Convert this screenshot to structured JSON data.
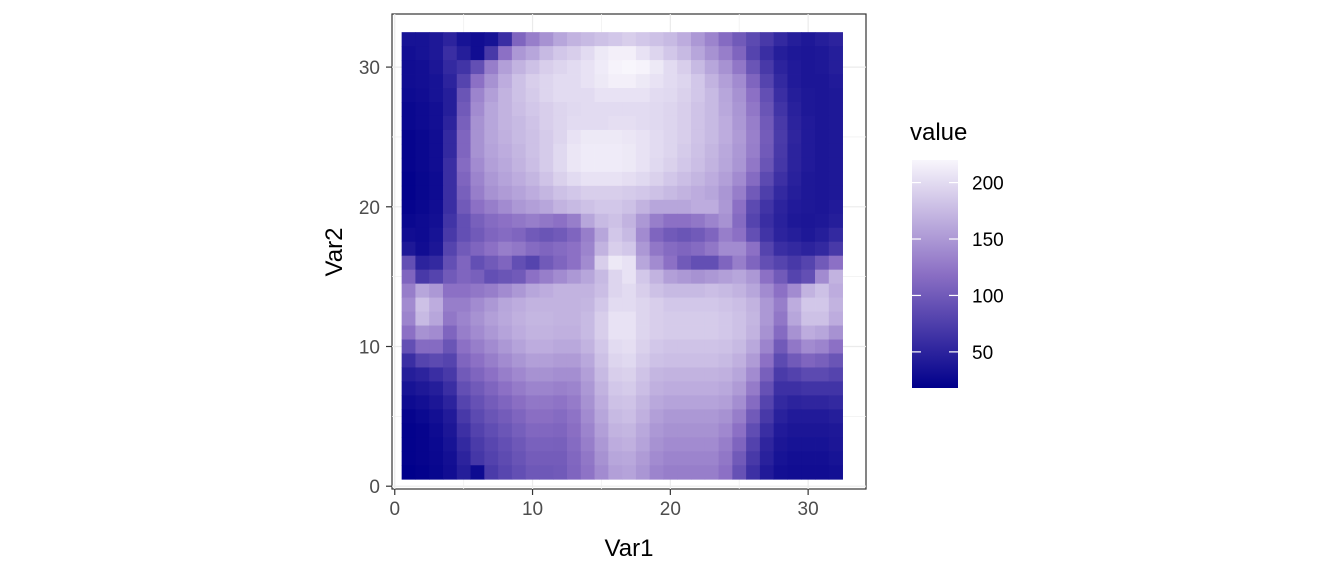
{
  "chart_data": {
    "type": "heatmap",
    "title": "",
    "xlabel": "Var1",
    "ylabel": "Var2",
    "xlim": [
      -0.2,
      34.2
    ],
    "ylim": [
      -0.2,
      33.8
    ],
    "x_ticks": [
      0,
      10,
      20,
      30
    ],
    "y_ticks": [
      0,
      10,
      20,
      30
    ],
    "grid": true,
    "legend": {
      "title": "value",
      "position": "right",
      "range": [
        18,
        220
      ],
      "ticks": [
        50,
        100,
        150,
        200
      ],
      "low_color": "#00008b",
      "mid_color": "#8b6fc4",
      "high_color": "#f8f6fc"
    },
    "nx": 32,
    "ny": 32,
    "rows_top_to_bottom": [
      [
        35,
        35,
        40,
        50,
        35,
        30,
        35,
        60,
        110,
        130,
        145,
        160,
        170,
        175,
        180,
        185,
        190,
        185,
        180,
        175,
        165,
        150,
        135,
        115,
        100,
        85,
        70,
        55,
        45,
        40,
        45,
        50
      ],
      [
        32,
        35,
        40,
        60,
        45,
        30,
        70,
        120,
        150,
        160,
        175,
        185,
        190,
        200,
        210,
        215,
        215,
        205,
        195,
        185,
        175,
        160,
        145,
        130,
        110,
        80,
        60,
        45,
        40,
        38,
        40,
        45
      ],
      [
        30,
        32,
        38,
        55,
        65,
        90,
        130,
        155,
        170,
        180,
        190,
        195,
        200,
        205,
        212,
        218,
        220,
        218,
        210,
        200,
        190,
        175,
        160,
        145,
        125,
        95,
        70,
        50,
        42,
        38,
        40,
        45
      ],
      [
        30,
        32,
        35,
        50,
        80,
        120,
        145,
        165,
        180,
        190,
        195,
        200,
        200,
        205,
        210,
        215,
        215,
        210,
        205,
        200,
        195,
        185,
        170,
        155,
        140,
        110,
        80,
        55,
        42,
        38,
        38,
        42
      ],
      [
        28,
        30,
        35,
        45,
        95,
        135,
        155,
        170,
        180,
        188,
        195,
        200,
        200,
        200,
        205,
        205,
        205,
        205,
        200,
        198,
        192,
        185,
        175,
        160,
        145,
        120,
        90,
        60,
        45,
        40,
        38,
        40
      ],
      [
        25,
        28,
        32,
        45,
        100,
        140,
        160,
        170,
        178,
        185,
        190,
        195,
        198,
        200,
        200,
        200,
        200,
        200,
        198,
        195,
        190,
        182,
        175,
        162,
        148,
        125,
        95,
        65,
        48,
        40,
        38,
        40
      ],
      [
        25,
        28,
        32,
        50,
        105,
        145,
        160,
        170,
        175,
        182,
        190,
        195,
        200,
        200,
        200,
        202,
        202,
        200,
        198,
        195,
        190,
        182,
        175,
        165,
        150,
        130,
        100,
        70,
        50,
        42,
        38,
        40
      ],
      [
        22,
        25,
        30,
        55,
        110,
        145,
        160,
        168,
        175,
        180,
        188,
        195,
        205,
        210,
        210,
        210,
        208,
        205,
        200,
        195,
        190,
        182,
        175,
        165,
        152,
        132,
        102,
        72,
        52,
        42,
        38,
        40
      ],
      [
        22,
        25,
        30,
        55,
        110,
        145,
        158,
        165,
        172,
        180,
        188,
        198,
        208,
        212,
        212,
        212,
        210,
        205,
        200,
        195,
        188,
        180,
        172,
        162,
        150,
        130,
        100,
        70,
        50,
        42,
        38,
        40
      ],
      [
        22,
        25,
        30,
        60,
        115,
        140,
        155,
        162,
        170,
        178,
        188,
        198,
        208,
        212,
        212,
        212,
        210,
        205,
        198,
        192,
        185,
        178,
        170,
        160,
        148,
        125,
        95,
        68,
        50,
        42,
        38,
        40
      ],
      [
        20,
        24,
        28,
        60,
        110,
        135,
        150,
        158,
        165,
        172,
        182,
        192,
        200,
        205,
        205,
        205,
        202,
        198,
        192,
        185,
        178,
        172,
        165,
        155,
        140,
        115,
        85,
        62,
        48,
        40,
        38,
        40
      ],
      [
        20,
        24,
        28,
        60,
        105,
        130,
        145,
        152,
        158,
        165,
        172,
        180,
        185,
        190,
        190,
        190,
        188,
        185,
        180,
        175,
        170,
        165,
        160,
        148,
        130,
        100,
        75,
        55,
        45,
        40,
        38,
        40
      ],
      [
        22,
        25,
        30,
        60,
        100,
        120,
        130,
        140,
        150,
        155,
        160,
        170,
        175,
        180,
        185,
        185,
        180,
        170,
        160,
        160,
        160,
        165,
        165,
        150,
        120,
        85,
        65,
        50,
        42,
        40,
        38,
        42
      ],
      [
        25,
        28,
        32,
        65,
        90,
        105,
        115,
        120,
        125,
        130,
        125,
        120,
        130,
        160,
        175,
        180,
        170,
        150,
        130,
        120,
        120,
        125,
        135,
        145,
        115,
        80,
        60,
        48,
        40,
        38,
        40,
        45
      ],
      [
        30,
        28,
        35,
        70,
        90,
        100,
        110,
        115,
        110,
        100,
        95,
        100,
        110,
        130,
        160,
        185,
        175,
        140,
        110,
        100,
        95,
        100,
        110,
        130,
        120,
        90,
        65,
        50,
        45,
        40,
        45,
        55
      ],
      [
        40,
        30,
        38,
        80,
        100,
        110,
        120,
        130,
        125,
        115,
        110,
        115,
        120,
        135,
        170,
        190,
        185,
        150,
        125,
        115,
        110,
        115,
        125,
        140,
        140,
        120,
        80,
        60,
        55,
        50,
        55,
        70
      ],
      [
        90,
        50,
        55,
        90,
        110,
        90,
        100,
        110,
        90,
        80,
        100,
        110,
        120,
        140,
        190,
        210,
        205,
        160,
        140,
        120,
        100,
        90,
        90,
        110,
        130,
        110,
        90,
        80,
        70,
        80,
        100,
        120
      ],
      [
        110,
        70,
        80,
        100,
        110,
        105,
        90,
        95,
        100,
        120,
        130,
        140,
        150,
        160,
        175,
        195,
        205,
        185,
        170,
        155,
        150,
        145,
        150,
        155,
        160,
        150,
        120,
        100,
        80,
        90,
        140,
        170
      ],
      [
        130,
        160,
        150,
        120,
        120,
        125,
        130,
        140,
        150,
        160,
        165,
        170,
        170,
        170,
        178,
        195,
        200,
        190,
        180,
        175,
        175,
        175,
        178,
        175,
        170,
        160,
        140,
        120,
        140,
        170,
        180,
        165
      ],
      [
        140,
        180,
        165,
        130,
        130,
        140,
        150,
        160,
        165,
        170,
        170,
        170,
        170,
        172,
        185,
        200,
        200,
        195,
        190,
        185,
        185,
        185,
        185,
        182,
        178,
        170,
        150,
        130,
        165,
        185,
        185,
        170
      ],
      [
        135,
        175,
        160,
        125,
        135,
        145,
        155,
        162,
        168,
        172,
        172,
        170,
        170,
        175,
        190,
        205,
        205,
        195,
        190,
        188,
        188,
        188,
        188,
        185,
        180,
        172,
        150,
        125,
        160,
        180,
        180,
        165
      ],
      [
        120,
        145,
        140,
        110,
        130,
        140,
        150,
        158,
        165,
        170,
        170,
        168,
        168,
        175,
        190,
        205,
        205,
        195,
        190,
        188,
        188,
        188,
        188,
        185,
        180,
        170,
        145,
        115,
        145,
        165,
        160,
        145
      ],
      [
        90,
        115,
        115,
        95,
        120,
        130,
        140,
        150,
        158,
        165,
        165,
        162,
        162,
        170,
        185,
        200,
        202,
        192,
        185,
        182,
        182,
        182,
        182,
        180,
        175,
        162,
        135,
        100,
        125,
        140,
        135,
        120
      ],
      [
        60,
        80,
        85,
        80,
        110,
        120,
        130,
        140,
        148,
        155,
        155,
        152,
        152,
        162,
        180,
        195,
        198,
        188,
        180,
        178,
        178,
        178,
        178,
        175,
        168,
        152,
        120,
        85,
        100,
        110,
        105,
        95
      ],
      [
        45,
        50,
        60,
        70,
        100,
        110,
        120,
        130,
        138,
        145,
        145,
        142,
        142,
        155,
        175,
        190,
        192,
        182,
        172,
        170,
        170,
        170,
        170,
        168,
        160,
        140,
        105,
        72,
        78,
        85,
        85,
        80
      ],
      [
        35,
        40,
        45,
        60,
        90,
        100,
        110,
        120,
        128,
        135,
        135,
        132,
        135,
        150,
        170,
        185,
        188,
        178,
        168,
        165,
        165,
        165,
        165,
        162,
        152,
        128,
        92,
        62,
        62,
        65,
        65,
        65
      ],
      [
        28,
        32,
        38,
        50,
        80,
        92,
        102,
        110,
        118,
        125,
        125,
        122,
        128,
        145,
        165,
        180,
        182,
        172,
        162,
        158,
        158,
        158,
        158,
        155,
        142,
        115,
        80,
        55,
        50,
        52,
        52,
        55
      ],
      [
        22,
        26,
        32,
        42,
        70,
        85,
        95,
        102,
        110,
        118,
        118,
        115,
        122,
        140,
        160,
        175,
        178,
        168,
        155,
        150,
        150,
        150,
        150,
        145,
        130,
        100,
        70,
        48,
        42,
        42,
        42,
        45
      ],
      [
        20,
        22,
        28,
        38,
        62,
        78,
        88,
        96,
        104,
        112,
        112,
        110,
        118,
        135,
        155,
        170,
        172,
        162,
        150,
        145,
        145,
        145,
        145,
        138,
        120,
        88,
        60,
        42,
        38,
        38,
        38,
        40
      ],
      [
        20,
        22,
        26,
        35,
        55,
        72,
        82,
        90,
        98,
        106,
        106,
        105,
        115,
        130,
        150,
        165,
        168,
        158,
        145,
        140,
        140,
        140,
        140,
        130,
        110,
        78,
        52,
        38,
        35,
        35,
        35,
        38
      ],
      [
        20,
        22,
        25,
        32,
        50,
        68,
        78,
        86,
        94,
        102,
        102,
        102,
        112,
        125,
        145,
        160,
        162,
        152,
        140,
        135,
        135,
        135,
        135,
        125,
        100,
        70,
        48,
        35,
        32,
        32,
        32,
        35
      ],
      [
        18,
        20,
        24,
        30,
        45,
        28,
        72,
        82,
        90,
        98,
        98,
        100,
        110,
        122,
        140,
        155,
        158,
        148,
        135,
        130,
        130,
        130,
        130,
        120,
        92,
        62,
        42,
        32,
        30,
        30,
        30,
        32
      ]
    ]
  }
}
